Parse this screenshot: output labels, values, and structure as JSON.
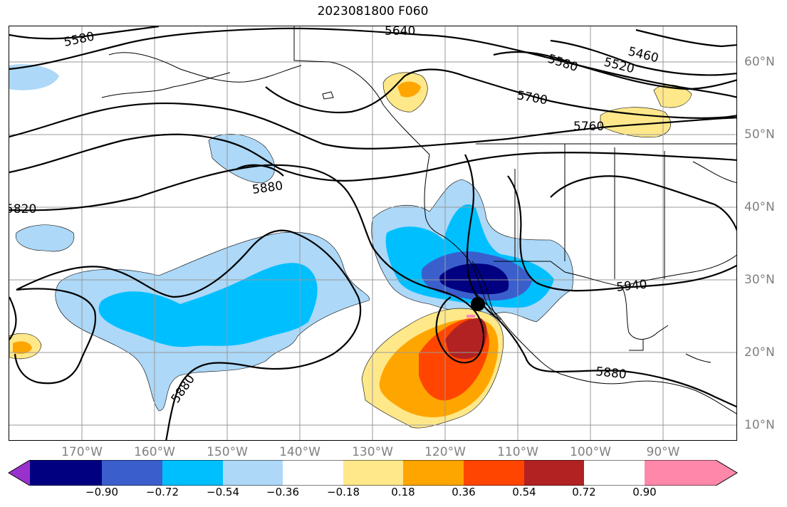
{
  "title": "2023081800 F060",
  "map": {
    "longitude_labels": [
      "170°W",
      "160°W",
      "150°W",
      "140°W",
      "130°W",
      "120°W",
      "110°W",
      "100°W",
      "90°W"
    ],
    "latitude_labels": [
      "60°N",
      "50°N",
      "40°N",
      "30°N",
      "20°N",
      "10°N"
    ],
    "contour_labels": [
      "5580",
      "5640",
      "5460",
      "5580",
      "5520",
      "5700",
      "5760",
      "5880",
      "5820",
      "5940",
      "5880",
      "5880"
    ],
    "storm_marker": "black-dot"
  },
  "colorbar": {
    "tick_labels": [
      "−0.90",
      "−0.72",
      "−0.54",
      "−0.36",
      "−0.18",
      "0.18",
      "0.36",
      "0.54",
      "0.72",
      "0.90"
    ],
    "colors": [
      "#9932CC",
      "#000080",
      "#3A5FCD",
      "#00BFFF",
      "#ADD8F7",
      "#FFFFFF",
      "#FFE88A",
      "#FFA500",
      "#FF4500",
      "#B22222",
      "#FF88AA"
    ]
  }
}
